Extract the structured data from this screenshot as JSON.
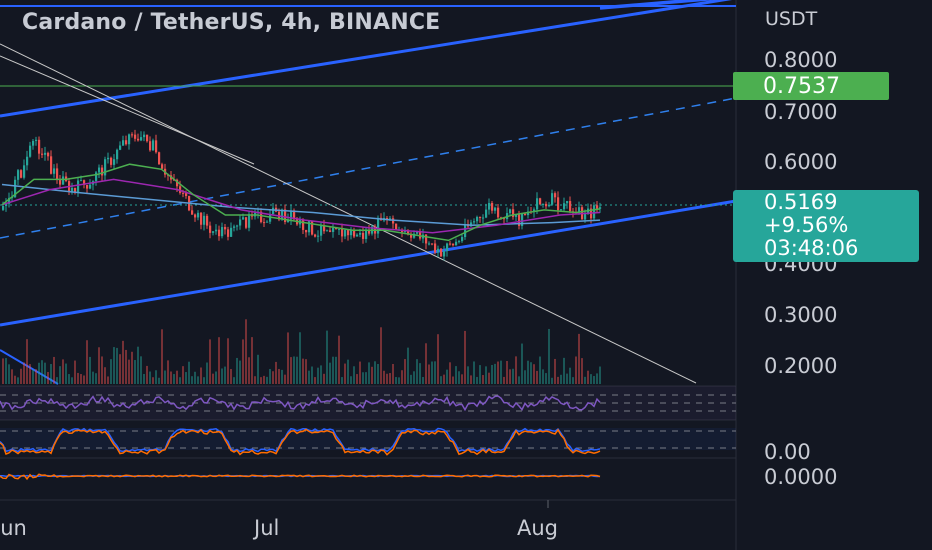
{
  "header": {
    "title": "Cardano / TetherUS, 4h, BINANCE"
  },
  "price_axis": {
    "currency": "USDT",
    "ticks": [
      "0.8000",
      "0.7000",
      "0.6000",
      "0.4000",
      "0.3000",
      "0.2000"
    ],
    "alert_price": "0.7537",
    "last_price": "0.5169",
    "change": "+9.56%",
    "countdown": "03:48:06",
    "osc_tick": "0.00",
    "macd_tick": "0.0000"
  },
  "time_axis": {
    "labels": [
      "Jun",
      "Jul",
      "Aug"
    ]
  },
  "colors": {
    "background": "#131722",
    "channel": "#2962ff",
    "alert": "#4caf50",
    "last": "#26a69a",
    "up": "#26a69a",
    "down": "#ef5350"
  },
  "chart_data": {
    "type": "candlestick",
    "title": "Cardano / TetherUS, 4h, BINANCE",
    "symbol": "ADA/USDT",
    "interval": "4h",
    "exchange": "BINANCE",
    "x_labels": [
      "Jun",
      "Jul",
      "Aug"
    ],
    "y_ticks": [
      0.2,
      0.3,
      0.4,
      0.6,
      0.7,
      0.8
    ],
    "last_price": 0.5169,
    "change_pct": 9.56,
    "alert_price": 0.7537,
    "close_path": [
      [
        "2021-05-27",
        0.51
      ],
      [
        "2021-05-29",
        0.58
      ],
      [
        "2021-05-31",
        0.64
      ],
      [
        "2021-06-01",
        0.62
      ],
      [
        "2021-06-03",
        0.57
      ],
      [
        "2021-06-05",
        0.55
      ],
      [
        "2021-06-07",
        0.57
      ],
      [
        "2021-06-09",
        0.6
      ],
      [
        "2021-06-11",
        0.64
      ],
      [
        "2021-06-13",
        0.66
      ],
      [
        "2021-06-15",
        0.63
      ],
      [
        "2021-06-17",
        0.57
      ],
      [
        "2021-06-19",
        0.53
      ],
      [
        "2021-06-21",
        0.49
      ],
      [
        "2021-06-23",
        0.46
      ],
      [
        "2021-06-25",
        0.47
      ],
      [
        "2021-06-27",
        0.49
      ],
      [
        "2021-06-29",
        0.5
      ],
      [
        "2021-07-01",
        0.5
      ],
      [
        "2021-07-03",
        0.49
      ],
      [
        "2021-07-05",
        0.47
      ],
      [
        "2021-07-07",
        0.46
      ],
      [
        "2021-07-09",
        0.47
      ],
      [
        "2021-07-11",
        0.46
      ],
      [
        "2021-07-13",
        0.48
      ],
      [
        "2021-07-15",
        0.48
      ],
      [
        "2021-07-17",
        0.47
      ],
      [
        "2021-07-19",
        0.45
      ],
      [
        "2021-07-21",
        0.43
      ],
      [
        "2021-07-23",
        0.45
      ],
      [
        "2021-07-25",
        0.49
      ],
      [
        "2021-07-27",
        0.52
      ],
      [
        "2021-07-29",
        0.5
      ],
      [
        "2021-07-31",
        0.49
      ],
      [
        "2021-08-02",
        0.52
      ],
      [
        "2021-08-04",
        0.53
      ],
      [
        "2021-08-06",
        0.51
      ],
      [
        "2021-08-08",
        0.5
      ],
      [
        "2021-08-10",
        0.517
      ]
    ],
    "ema_fast_path": [
      [
        "2021-05-27",
        0.52
      ],
      [
        "2021-05-31",
        0.57
      ],
      [
        "2021-06-04",
        0.57
      ],
      [
        "2021-06-08",
        0.58
      ],
      [
        "2021-06-12",
        0.6
      ],
      [
        "2021-06-16",
        0.59
      ],
      [
        "2021-06-20",
        0.54
      ],
      [
        "2021-06-24",
        0.5
      ],
      [
        "2021-06-28",
        0.5
      ],
      [
        "2021-07-02",
        0.49
      ],
      [
        "2021-07-06",
        0.48
      ],
      [
        "2021-07-10",
        0.47
      ],
      [
        "2021-07-14",
        0.47
      ],
      [
        "2021-07-18",
        0.46
      ],
      [
        "2021-07-22",
        0.45
      ],
      [
        "2021-07-26",
        0.48
      ],
      [
        "2021-07-30",
        0.5
      ],
      [
        "2021-08-03",
        0.51
      ],
      [
        "2021-08-07",
        0.505
      ],
      [
        "2021-08-10",
        0.512
      ]
    ],
    "ema_mid_path": [
      [
        "2021-05-27",
        0.52
      ],
      [
        "2021-06-02",
        0.55
      ],
      [
        "2021-06-10",
        0.57
      ],
      [
        "2021-06-18",
        0.55
      ],
      [
        "2021-06-26",
        0.51
      ],
      [
        "2021-07-04",
        0.49
      ],
      [
        "2021-07-12",
        0.475
      ],
      [
        "2021-07-20",
        0.465
      ],
      [
        "2021-07-28",
        0.48
      ],
      [
        "2021-08-05",
        0.5
      ],
      [
        "2021-08-10",
        0.505
      ]
    ],
    "ema_slow_path": [
      [
        "2021-05-27",
        0.56
      ],
      [
        "2021-06-05",
        0.545
      ],
      [
        "2021-06-15",
        0.53
      ],
      [
        "2021-06-25",
        0.515
      ],
      [
        "2021-07-05",
        0.505
      ],
      [
        "2021-07-15",
        0.49
      ],
      [
        "2021-07-25",
        0.48
      ],
      [
        "2021-08-04",
        0.485
      ],
      [
        "2021-08-10",
        0.49
      ]
    ],
    "series": [
      {
        "name": "Cardano / TetherUS"
      }
    ]
  }
}
